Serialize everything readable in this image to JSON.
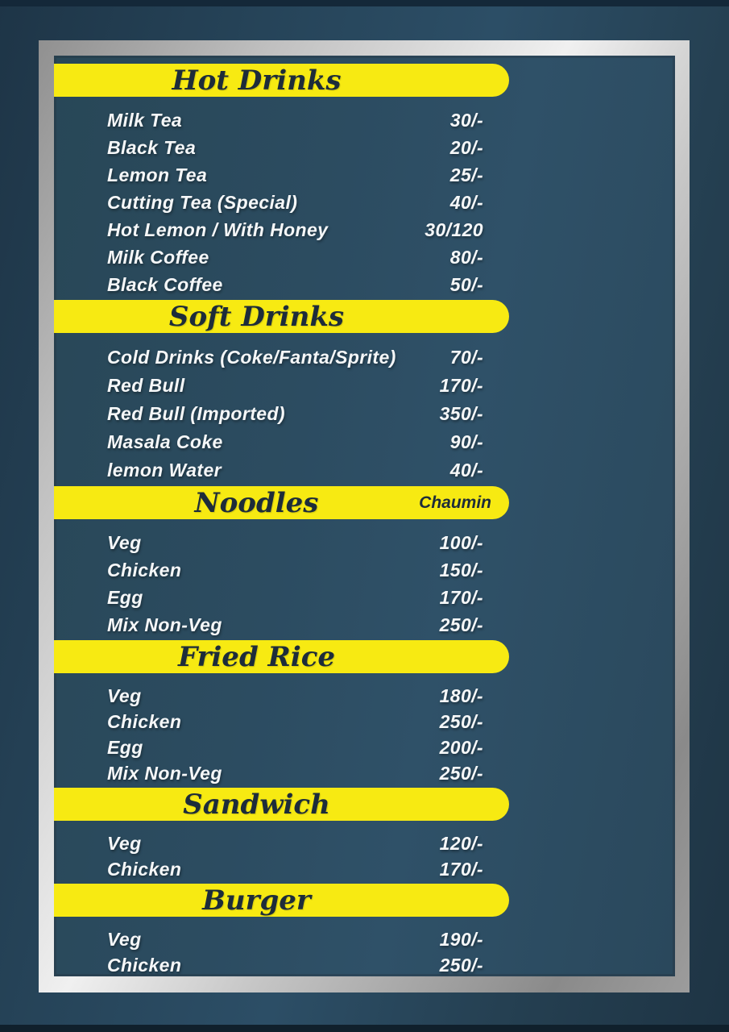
{
  "menu": {
    "sections": [
      {
        "title": "Hot Drinks",
        "items": [
          {
            "name": "Milk Tea",
            "price": "30/-"
          },
          {
            "name": "Black Tea",
            "price": "20/-"
          },
          {
            "name": "Lemon Tea",
            "price": "25/-"
          },
          {
            "name": "Cutting Tea (Special)",
            "price": "40/-"
          },
          {
            "name": "Hot Lemon / With Honey",
            "price": "30/120"
          },
          {
            "name": "Milk Coffee",
            "price": "80/-"
          },
          {
            "name": "Black Coffee",
            "price": "50/-"
          }
        ]
      },
      {
        "title": "Soft Drinks",
        "items": [
          {
            "name": "Cold Drinks (Coke/Fanta/Sprite)",
            "price": "70/-"
          },
          {
            "name": "Red Bull",
            "price": "170/-"
          },
          {
            "name": "Red Bull (Imported)",
            "price": "350/-"
          },
          {
            "name": "Masala Coke",
            "price": "90/-"
          },
          {
            "name": "lemon Water",
            "price": "40/-"
          }
        ]
      },
      {
        "title": "Noodles",
        "badge": "Chaumin",
        "items": [
          {
            "name": "Veg",
            "price": "100/-"
          },
          {
            "name": "Chicken",
            "price": "150/-"
          },
          {
            "name": "Egg",
            "price": "170/-"
          },
          {
            "name": "Mix Non-Veg",
            "price": "250/-"
          }
        ]
      },
      {
        "title": "Fried Rice",
        "items": [
          {
            "name": "Veg",
            "price": "180/-"
          },
          {
            "name": "Chicken",
            "price": "250/-"
          },
          {
            "name": "Egg",
            "price": "200/-"
          },
          {
            "name": "Mix Non-Veg",
            "price": "250/-"
          }
        ]
      },
      {
        "title": "Sandwich",
        "items": [
          {
            "name": "Veg",
            "price": "120/-"
          },
          {
            "name": "Chicken",
            "price": "170/-"
          }
        ]
      },
      {
        "title": "Burger",
        "items": [
          {
            "name": "Veg",
            "price": "190/-"
          },
          {
            "name": "Chicken",
            "price": "250/-"
          }
        ]
      }
    ]
  },
  "colors": {
    "header_bar": "#f7ea12",
    "header_text": "#1d2c3a",
    "item_text": "#f5f7f8",
    "panel_bg": "#2c4c61",
    "outer_bg": "#24425a",
    "frame_silver": "#cfcfcf"
  }
}
